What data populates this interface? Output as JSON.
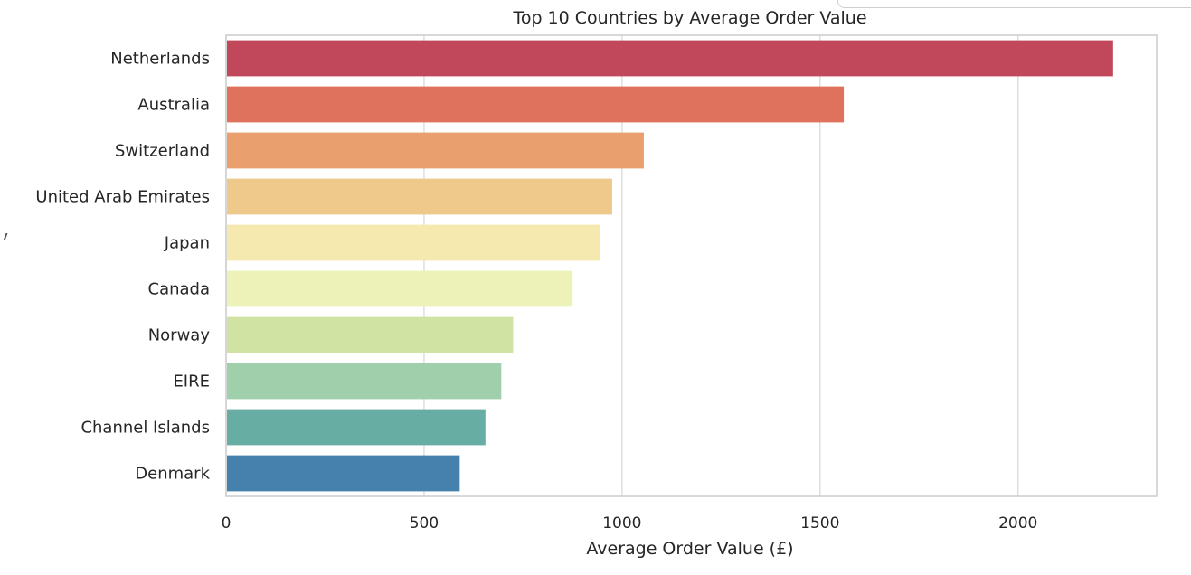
{
  "chart_data": {
    "type": "bar",
    "orientation": "horizontal",
    "title": "Top 10 Countries by Average Order Value",
    "xlabel": "Average Order Value (£)",
    "ylabel": "",
    "categories": [
      "Netherlands",
      "Australia",
      "Switzerland",
      "United Arab Emirates",
      "Japan",
      "Canada",
      "Norway",
      "EIRE",
      "Channel Islands",
      "Denmark"
    ],
    "values": [
      2240,
      1560,
      1055,
      975,
      945,
      875,
      725,
      695,
      655,
      590
    ],
    "colors": [
      "#c0485a",
      "#de725c",
      "#e9a06e",
      "#efc98c",
      "#f6e9b0",
      "#edf2b9",
      "#d1e3a3",
      "#a0cfac",
      "#68ada3",
      "#4681ae"
    ],
    "xlim": [
      0,
      2350
    ],
    "xticks": [
      0,
      500,
      1000,
      1500,
      2000
    ],
    "grid": "vertical",
    "legend": "none"
  }
}
